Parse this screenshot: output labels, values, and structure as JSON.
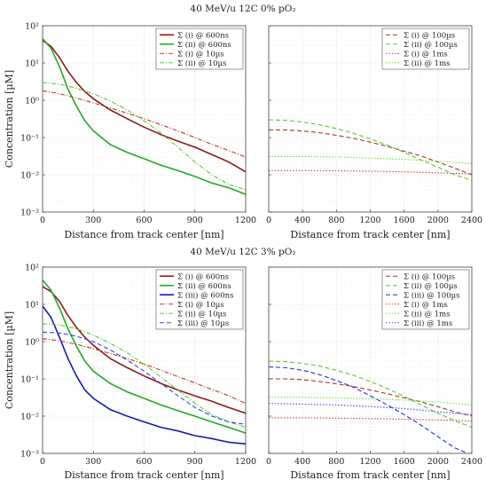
{
  "chart_data": [
    {
      "id": "top",
      "type": "line",
      "title": "40 MeV/u 12C 0% pO₂",
      "ylabel": "Concentration [µM]",
      "yscale": "log",
      "ylim": [
        0.001,
        100
      ],
      "yticks": [
        {
          "v": 100,
          "label": "10²"
        },
        {
          "v": 10,
          "label": "10¹"
        },
        {
          "v": 1,
          "label": "10⁰"
        },
        {
          "v": 0.1,
          "label": "10⁻¹"
        },
        {
          "v": 0.01,
          "label": "10⁻²"
        },
        {
          "v": 0.001,
          "label": "10⁻³"
        }
      ],
      "grid": true,
      "panels": [
        {
          "id": "left",
          "xlabel": "Distance from track center [nm]",
          "xlim": [
            0,
            1200
          ],
          "xticks": [
            0,
            300,
            600,
            900,
            1200
          ],
          "legend": "top-right",
          "series": [
            {
              "name": "Σ (i) @ 600ns",
              "color": "#8B1A1A",
              "dash": "solid",
              "x": [
                0,
                50,
                100,
                150,
                200,
                250,
                300,
                400,
                500,
                600,
                700,
                800,
                900,
                1000,
                1100,
                1200
              ],
              "y": [
                40,
                28,
                14,
                6,
                3,
                1.7,
                1.1,
                0.55,
                0.32,
                0.19,
                0.12,
                0.08,
                0.055,
                0.035,
                0.022,
                0.012
              ]
            },
            {
              "name": "Σ (ii) @ 600ns",
              "color": "#22AA22",
              "dash": "solid",
              "x": [
                0,
                50,
                100,
                150,
                200,
                250,
                300,
                400,
                500,
                600,
                700,
                800,
                900,
                1000,
                1100,
                1200
              ],
              "y": [
                45,
                25,
                8,
                2,
                0.7,
                0.28,
                0.15,
                0.065,
                0.04,
                0.027,
                0.018,
                0.013,
                0.009,
                0.006,
                0.0045,
                0.003
              ]
            },
            {
              "name": "Σ (i) @ 10µs",
              "color": "#C0392B",
              "dash": "dashdot",
              "x": [
                0,
                100,
                200,
                300,
                400,
                500,
                600,
                700,
                800,
                900,
                1000,
                1100,
                1200
              ],
              "y": [
                1.8,
                1.5,
                1.15,
                0.85,
                0.62,
                0.45,
                0.32,
                0.22,
                0.15,
                0.1,
                0.066,
                0.045,
                0.03
              ]
            },
            {
              "name": "Σ (ii) @ 10µs",
              "color": "#55CC33",
              "dash": "dashdot",
              "x": [
                0,
                100,
                200,
                300,
                400,
                500,
                600,
                700,
                800,
                900,
                1000,
                1100,
                1200
              ],
              "y": [
                3,
                2.7,
                2.1,
                1.5,
                0.95,
                0.55,
                0.28,
                0.13,
                0.055,
                0.022,
                0.01,
                0.0055,
                0.004
              ]
            }
          ]
        },
        {
          "id": "right",
          "xlabel": "Distance from track center [nm]",
          "xlim": [
            0,
            2400
          ],
          "xticks": [
            0,
            400,
            800,
            1200,
            1600,
            2000,
            2400
          ],
          "legend": "top-right",
          "series": [
            {
              "name": "Σ (i) @ 100µs",
              "color": "#A0382B",
              "dash": "dashed",
              "x": [
                0,
                200,
                400,
                600,
                800,
                1000,
                1200,
                1400,
                1600,
                1800,
                2000,
                2200,
                2400
              ],
              "y": [
                0.16,
                0.16,
                0.15,
                0.135,
                0.115,
                0.095,
                0.075,
                0.058,
                0.043,
                0.032,
                0.022,
                0.015,
                0.01
              ]
            },
            {
              "name": "Σ (ii) @ 100µs",
              "color": "#55CC33",
              "dash": "dashed",
              "x": [
                0,
                200,
                400,
                600,
                800,
                1000,
                1200,
                1400,
                1600,
                1800,
                2000,
                2200,
                2400
              ],
              "y": [
                0.3,
                0.29,
                0.26,
                0.22,
                0.175,
                0.13,
                0.092,
                0.062,
                0.04,
                0.025,
                0.016,
                0.01,
                0.007
              ]
            },
            {
              "name": "Σ (i) @ 1ms",
              "color": "#C0392B",
              "dash": "dotted",
              "x": [
                0,
                400,
                800,
                1200,
                1600,
                2000,
                2400
              ],
              "y": [
                0.013,
                0.013,
                0.0128,
                0.0125,
                0.012,
                0.0113,
                0.0105
              ]
            },
            {
              "name": "Σ (ii) @ 1ms",
              "color": "#66DD33",
              "dash": "dotted",
              "x": [
                0,
                400,
                800,
                1200,
                1600,
                2000,
                2400
              ],
              "y": [
                0.031,
                0.031,
                0.03,
                0.028,
                0.026,
                0.023,
                0.02
              ]
            }
          ]
        }
      ]
    },
    {
      "id": "bottom",
      "type": "line",
      "title": "40 MeV/u 12C 3% pO₂",
      "ylabel": "Concentration [µM]",
      "yscale": "log",
      "ylim": [
        0.001,
        100
      ],
      "yticks": [
        {
          "v": 100,
          "label": "10²"
        },
        {
          "v": 10,
          "label": "10¹"
        },
        {
          "v": 1,
          "label": "10⁰"
        },
        {
          "v": 0.1,
          "label": "10⁻¹"
        },
        {
          "v": 0.01,
          "label": "10⁻²"
        },
        {
          "v": 0.001,
          "label": "10⁻³"
        }
      ],
      "grid": true,
      "panels": [
        {
          "id": "left",
          "xlabel": "Distance from track center [nm]",
          "xlim": [
            0,
            1200
          ],
          "xticks": [
            0,
            300,
            600,
            900,
            1200
          ],
          "legend": "top-right",
          "series": [
            {
              "name": "Σ (i) @ 600ns",
              "color": "#8B1A1A",
              "dash": "solid",
              "x": [
                0,
                50,
                100,
                150,
                200,
                250,
                300,
                400,
                500,
                600,
                700,
                800,
                900,
                1000,
                1100,
                1200
              ],
              "y": [
                30,
                22,
                12,
                5,
                2.4,
                1.3,
                0.8,
                0.35,
                0.2,
                0.12,
                0.075,
                0.05,
                0.035,
                0.025,
                0.017,
                0.012
              ]
            },
            {
              "name": "Σ (ii) @ 600ns",
              "color": "#22AA22",
              "dash": "solid",
              "x": [
                0,
                50,
                100,
                150,
                200,
                250,
                300,
                400,
                500,
                600,
                700,
                800,
                900,
                1000,
                1100,
                1200
              ],
              "y": [
                45,
                24,
                8,
                2.2,
                0.75,
                0.3,
                0.16,
                0.075,
                0.045,
                0.03,
                0.02,
                0.014,
                0.01,
                0.007,
                0.005,
                0.0035
              ]
            },
            {
              "name": "Σ (iii) @ 600ns",
              "color": "#1A1AAA",
              "dash": "solid",
              "x": [
                0,
                50,
                100,
                150,
                200,
                250,
                300,
                400,
                500,
                600,
                700,
                800,
                900,
                1000,
                1100,
                1200
              ],
              "y": [
                9,
                4.5,
                1.3,
                0.35,
                0.12,
                0.05,
                0.03,
                0.015,
                0.01,
                0.007,
                0.005,
                0.004,
                0.003,
                0.0025,
                0.002,
                0.0018
              ]
            },
            {
              "name": "Σ (i) @ 10µs",
              "color": "#C0392B",
              "dash": "dashdot",
              "x": [
                0,
                100,
                200,
                300,
                400,
                500,
                600,
                700,
                800,
                900,
                1000,
                1100,
                1200
              ],
              "y": [
                1.2,
                1.05,
                0.85,
                0.65,
                0.48,
                0.35,
                0.25,
                0.17,
                0.115,
                0.078,
                0.052,
                0.035,
                0.022
              ]
            },
            {
              "name": "Σ (ii) @ 10µs",
              "color": "#55CC33",
              "dash": "dashdot",
              "x": [
                0,
                100,
                200,
                300,
                400,
                500,
                600,
                700,
                800,
                900,
                1000,
                1100,
                1200
              ],
              "y": [
                3,
                2.8,
                2.2,
                1.5,
                0.9,
                0.5,
                0.25,
                0.11,
                0.05,
                0.022,
                0.011,
                0.007,
                0.005
              ]
            },
            {
              "name": "Σ (iii) @ 10µs",
              "color": "#3344DD",
              "dash": "dashed",
              "x": [
                0,
                100,
                200,
                300,
                400,
                500,
                600,
                700,
                800,
                900,
                1000,
                1100,
                1200
              ],
              "y": [
                1.8,
                1.7,
                1.4,
                1.0,
                0.6,
                0.32,
                0.16,
                0.075,
                0.035,
                0.017,
                0.01,
                0.007,
                0.006
              ]
            }
          ]
        },
        {
          "id": "right",
          "xlabel": "Distance from track center [nm]",
          "xlim": [
            0,
            2400
          ],
          "xticks": [
            0,
            400,
            800,
            1200,
            1600,
            2000,
            2400
          ],
          "legend": "top-right",
          "series": [
            {
              "name": "Σ (i) @ 100µs",
              "color": "#A0382B",
              "dash": "dashed",
              "x": [
                0,
                200,
                400,
                600,
                800,
                1000,
                1200,
                1400,
                1600,
                1800,
                2000,
                2200,
                2400
              ],
              "y": [
                0.1,
                0.1,
                0.095,
                0.085,
                0.074,
                0.062,
                0.05,
                0.04,
                0.031,
                0.024,
                0.018,
                0.013,
                0.01
              ]
            },
            {
              "name": "Σ (ii) @ 100µs",
              "color": "#55CC33",
              "dash": "dashed",
              "x": [
                0,
                200,
                400,
                600,
                800,
                1000,
                1200,
                1400,
                1600,
                1800,
                2000,
                2200,
                2400
              ],
              "y": [
                0.3,
                0.29,
                0.26,
                0.22,
                0.17,
                0.125,
                0.085,
                0.055,
                0.034,
                0.02,
                0.012,
                0.0075,
                0.005
              ]
            },
            {
              "name": "Σ (iii) @ 100µs",
              "color": "#2233CC",
              "dash": "dashed",
              "x": [
                0,
                200,
                400,
                600,
                800,
                1000,
                1200,
                1400,
                1600,
                1800,
                2000,
                2200,
                2400
              ],
              "y": [
                0.21,
                0.2,
                0.17,
                0.13,
                0.09,
                0.06,
                0.035,
                0.02,
                0.011,
                0.0057,
                0.0028,
                0.0014,
                0.0009
              ]
            },
            {
              "name": "Σ (i) @ 1ms",
              "color": "#C0392B",
              "dash": "dotted",
              "x": [
                0,
                400,
                800,
                1200,
                1600,
                2000,
                2400
              ],
              "y": [
                0.009,
                0.009,
                0.0088,
                0.0086,
                0.0083,
                0.0079,
                0.0074
              ]
            },
            {
              "name": "Σ (ii) @ 1ms",
              "color": "#66DD33",
              "dash": "dotted",
              "x": [
                0,
                400,
                800,
                1200,
                1600,
                2000,
                2400
              ],
              "y": [
                0.032,
                0.032,
                0.031,
                0.029,
                0.027,
                0.024,
                0.02
              ]
            },
            {
              "name": "Σ (iii) @ 1ms",
              "color": "#3344DD",
              "dash": "dotted",
              "x": [
                0,
                400,
                800,
                1200,
                1600,
                2000,
                2400
              ],
              "y": [
                0.022,
                0.021,
                0.02,
                0.018,
                0.016,
                0.013,
                0.011
              ]
            }
          ]
        }
      ]
    }
  ]
}
